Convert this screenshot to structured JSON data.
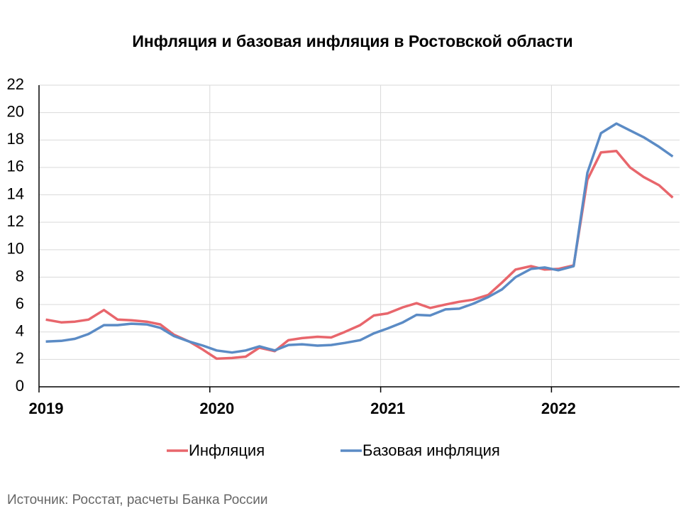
{
  "chart_data": {
    "type": "line",
    "title": "Инфляция и базовая инфляция в  Ростовской области",
    "source": "Источник: Росстат, расчеты Банка России",
    "x": [
      2019.04,
      2019.13,
      2019.21,
      2019.29,
      2019.38,
      2019.46,
      2019.54,
      2019.63,
      2019.71,
      2019.79,
      2019.88,
      2019.96,
      2020.04,
      2020.13,
      2020.21,
      2020.29,
      2020.38,
      2020.46,
      2020.54,
      2020.63,
      2020.71,
      2020.79,
      2020.88,
      2020.96,
      2021.04,
      2021.13,
      2021.21,
      2021.29,
      2021.38,
      2021.46,
      2021.54,
      2021.63,
      2021.71,
      2021.79,
      2021.88,
      2021.96,
      2022.04,
      2022.13,
      2022.21,
      2022.29,
      2022.38,
      2022.46,
      2022.54,
      2022.63,
      2022.71
    ],
    "series": [
      {
        "name": "Инфляция",
        "color": "#e8666c",
        "values": [
          4.9,
          4.7,
          4.75,
          4.9,
          5.6,
          4.9,
          4.85,
          4.75,
          4.55,
          3.8,
          3.3,
          2.7,
          2.05,
          2.1,
          2.2,
          2.85,
          2.6,
          3.4,
          3.55,
          3.65,
          3.6,
          4.0,
          4.5,
          5.2,
          5.35,
          5.8,
          6.1,
          5.75,
          6.0,
          6.2,
          6.35,
          6.7,
          7.6,
          8.55,
          8.8,
          8.55,
          8.6,
          8.85,
          15.1,
          17.1,
          17.2,
          16.0,
          15.3,
          14.7,
          13.8
        ]
      },
      {
        "name": "Базовая инфляция",
        "color": "#5b8bc5",
        "values": [
          3.3,
          3.35,
          3.5,
          3.85,
          4.5,
          4.5,
          4.6,
          4.55,
          4.3,
          3.7,
          3.3,
          3.0,
          2.65,
          2.5,
          2.65,
          2.95,
          2.65,
          3.05,
          3.1,
          3.0,
          3.05,
          3.2,
          3.4,
          3.9,
          4.25,
          4.7,
          5.25,
          5.2,
          5.65,
          5.7,
          6.05,
          6.55,
          7.1,
          8.0,
          8.6,
          8.7,
          8.5,
          8.8,
          15.6,
          18.5,
          19.2,
          18.7,
          18.2,
          17.5,
          16.8
        ]
      }
    ],
    "xlim": [
      2019,
      2022.75
    ],
    "xticks": [
      2019,
      2020,
      2021,
      2022
    ],
    "ylim": [
      0,
      22
    ],
    "yticks": [
      0,
      2,
      4,
      6,
      8,
      10,
      12,
      14,
      16,
      18,
      20,
      22
    ],
    "grid": true,
    "legend": "bottom"
  }
}
